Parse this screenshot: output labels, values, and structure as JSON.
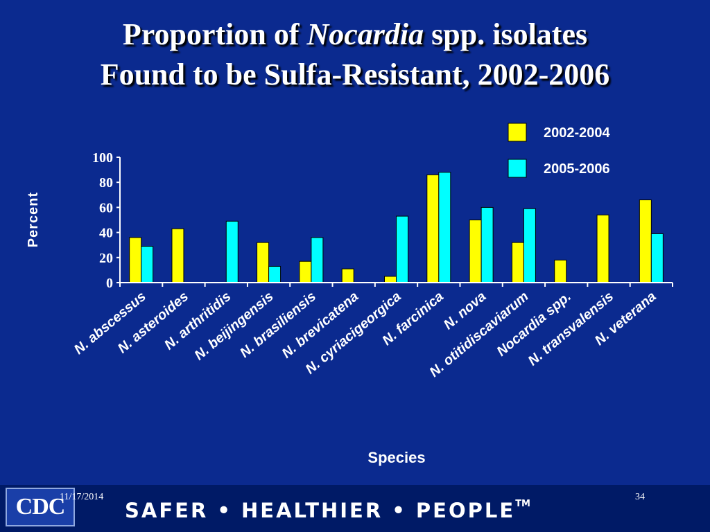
{
  "slide": {
    "title_line1_pre": "Proportion of ",
    "title_line1_italic": "Nocardia",
    "title_line1_post": " spp. isolates",
    "title_line2": "Found to be Sulfa-Resistant, 2002-2006"
  },
  "chart_data": {
    "type": "bar",
    "title": "Proportion of Nocardia spp. isolates Found to be Sulfa-Resistant, 2002-2006",
    "xlabel": "Species",
    "ylabel": "Percent",
    "ylim": [
      0,
      100
    ],
    "yticks": [
      0,
      20,
      40,
      60,
      80,
      100
    ],
    "grid": false,
    "legend_position": "top-right",
    "categories": [
      "N. abscessus",
      "N. asteroides",
      "N. arthritidis",
      "N. beijingensis",
      "N. brasiliensis",
      "N. brevicatena",
      "N. cyriacigeorgica",
      "N. farcinica",
      "N. nova",
      "N. otitidiscaviarum",
      "Nocardia spp.",
      "N. transvalensis",
      "N. veterana"
    ],
    "series": [
      {
        "name": "2002-2004",
        "color": "#ffff00",
        "values": [
          36,
          43,
          0,
          32,
          17,
          11,
          5,
          86,
          50,
          32,
          18,
          54,
          66
        ]
      },
      {
        "name": "2005-2006",
        "color": "#00ffff",
        "values": [
          29,
          0,
          49,
          13,
          36,
          0,
          53,
          88,
          60,
          59,
          0,
          0,
          39
        ]
      }
    ]
  },
  "footer": {
    "logo": "CDC",
    "date": "11/17/2014",
    "page": "34",
    "slogan": "SAFER • HEALTHIER • PEOPLE",
    "trademark": "TM"
  }
}
